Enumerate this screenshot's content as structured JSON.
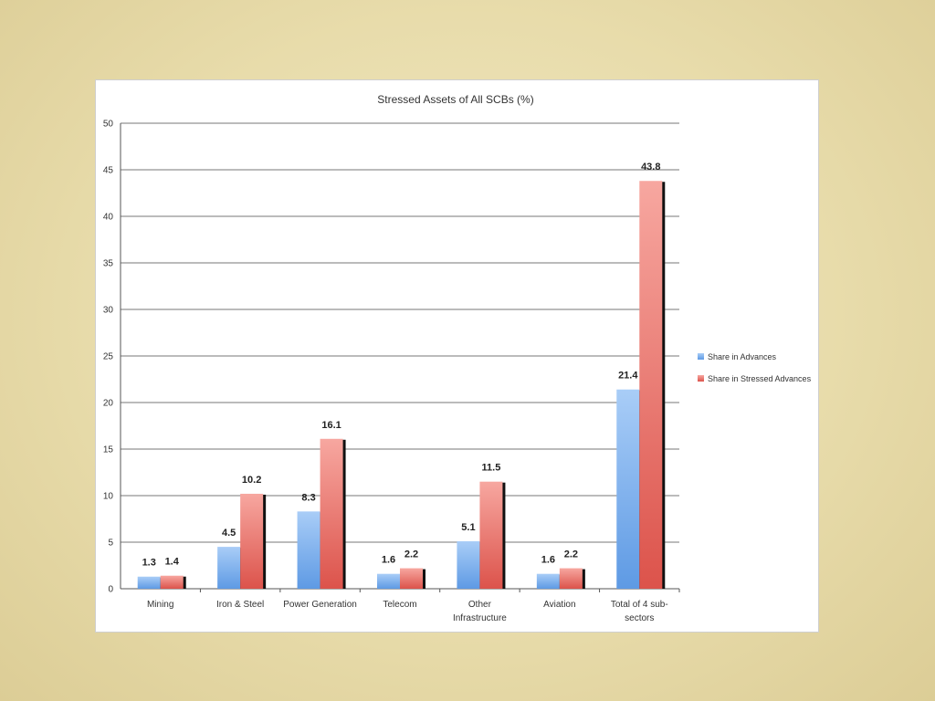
{
  "chart_data": {
    "type": "bar",
    "title": "Stressed Assets of All SCBs (%)",
    "xlabel": "",
    "ylabel": "",
    "ylim": [
      0,
      50
    ],
    "yticks": [
      0,
      5,
      10,
      15,
      20,
      25,
      30,
      35,
      40,
      45,
      50
    ],
    "grid": true,
    "legend_position": "right",
    "categories": [
      [
        "Mining"
      ],
      [
        "Iron & Steel"
      ],
      [
        "Power Generation"
      ],
      [
        "Telecom"
      ],
      [
        "Other",
        "Infrastructure"
      ],
      [
        "Aviation"
      ],
      [
        "Total of 4 sub-",
        "sectors"
      ]
    ],
    "series": [
      {
        "name": "Share in Advances",
        "values": [
          1.3,
          4.5,
          8.3,
          1.6,
          5.1,
          1.6,
          21.4
        ],
        "labels": [
          "1.3",
          "4.5",
          "8.3",
          "1.6",
          "5.1",
          "1.6",
          "21.4"
        ],
        "color": "#7fb2ee"
      },
      {
        "name": "Share in Stressed Advances",
        "values": [
          1.4,
          10.2,
          16.1,
          2.2,
          11.5,
          2.2,
          43.8
        ],
        "labels": [
          "1.4",
          "10.2",
          "16.1",
          "2.2",
          "11.5",
          "2.2",
          "43.8"
        ],
        "color": "#f08a84"
      }
    ]
  }
}
